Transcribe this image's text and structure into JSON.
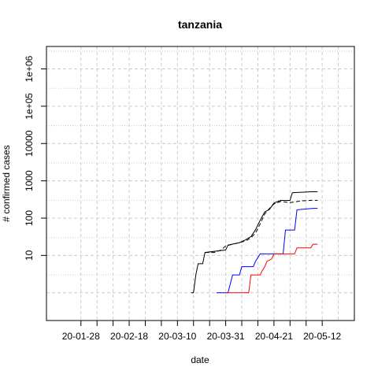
{
  "chart_data": {
    "type": "line",
    "title": "tanzania",
    "xlabel": "date",
    "ylabel": "# confirmed cases",
    "y_scale": "log",
    "ylim": [
      0.18,
      4000000
    ],
    "xlim": [
      "2020-01-13",
      "2020-05-26"
    ],
    "x_ticks": [
      {
        "date": "2020-01-28",
        "label": "20-01-28"
      },
      {
        "date": "2020-02-18",
        "label": "20-02-18"
      },
      {
        "date": "2020-03-10",
        "label": "20-03-10"
      },
      {
        "date": "2020-03-31",
        "label": "20-03-31"
      },
      {
        "date": "2020-04-21",
        "label": "20-04-21"
      },
      {
        "date": "2020-05-12",
        "label": "20-05-12"
      }
    ],
    "y_ticks": [
      {
        "value": 10,
        "label": "10"
      },
      {
        "value": 100,
        "label": "100"
      },
      {
        "value": 1000,
        "label": "1000"
      },
      {
        "value": 10000,
        "label": "10000"
      },
      {
        "value": 100000,
        "label": "1e+05"
      },
      {
        "value": 1000000,
        "label": "1e+06"
      }
    ],
    "grid": true,
    "series": [
      {
        "color": "#000000",
        "dash": "solid",
        "points": [
          [
            "2020-03-16",
            1
          ],
          [
            "2020-03-17",
            1
          ],
          [
            "2020-03-18",
            3
          ],
          [
            "2020-03-19",
            6
          ],
          [
            "2020-03-21",
            6
          ],
          [
            "2020-03-22",
            12
          ],
          [
            "2020-03-31",
            14
          ],
          [
            "2020-04-01",
            19
          ],
          [
            "2020-04-06",
            22
          ],
          [
            "2020-04-08",
            25
          ],
          [
            "2020-04-11",
            32
          ],
          [
            "2020-04-13",
            49
          ],
          [
            "2020-04-15",
            88
          ],
          [
            "2020-04-17",
            147
          ],
          [
            "2020-04-19",
            170
          ],
          [
            "2020-04-21",
            254
          ],
          [
            "2020-04-23",
            284
          ],
          [
            "2020-04-24",
            299
          ],
          [
            "2020-04-28",
            299
          ],
          [
            "2020-04-29",
            480
          ],
          [
            "2020-05-07",
            509
          ],
          [
            "2020-05-10",
            509
          ]
        ]
      },
      {
        "color": "#000000",
        "dash": "dashed",
        "points": [
          [
            "2020-03-22",
            12
          ],
          [
            "2020-03-26",
            12
          ],
          [
            "2020-03-29",
            14
          ],
          [
            "2020-03-31",
            18
          ],
          [
            "2020-04-06",
            22
          ],
          [
            "2020-04-09",
            25
          ],
          [
            "2020-04-11",
            30
          ],
          [
            "2020-04-13",
            40
          ],
          [
            "2020-04-15",
            70
          ],
          [
            "2020-04-17",
            130
          ],
          [
            "2020-04-19",
            180
          ],
          [
            "2020-04-21",
            240
          ],
          [
            "2020-04-24",
            280
          ],
          [
            "2020-04-28",
            260
          ],
          [
            "2020-05-03",
            290
          ],
          [
            "2020-05-07",
            300
          ],
          [
            "2020-05-10",
            300
          ]
        ]
      },
      {
        "color": "#0000ff",
        "dash": "solid",
        "points": [
          [
            "2020-03-27",
            1
          ],
          [
            "2020-04-01",
            1
          ],
          [
            "2020-04-03",
            3
          ],
          [
            "2020-04-06",
            3
          ],
          [
            "2020-04-07",
            5
          ],
          [
            "2020-04-12",
            5
          ],
          [
            "2020-04-13",
            7
          ],
          [
            "2020-04-15",
            11
          ],
          [
            "2020-04-25",
            11
          ],
          [
            "2020-04-26",
            48
          ],
          [
            "2020-04-30",
            48
          ],
          [
            "2020-05-01",
            167
          ],
          [
            "2020-05-08",
            183
          ],
          [
            "2020-05-10",
            183
          ]
        ]
      },
      {
        "color": "#ff0000",
        "dash": "solid",
        "points": [
          [
            "2020-03-31",
            1
          ],
          [
            "2020-04-10",
            1
          ],
          [
            "2020-04-11",
            3
          ],
          [
            "2020-04-15",
            3
          ],
          [
            "2020-04-16",
            4
          ],
          [
            "2020-04-17",
            5
          ],
          [
            "2020-04-18",
            7
          ],
          [
            "2020-04-20",
            8
          ],
          [
            "2020-04-21",
            11
          ],
          [
            "2020-04-30",
            11
          ],
          [
            "2020-05-01",
            16
          ],
          [
            "2020-05-07",
            16
          ],
          [
            "2020-05-08",
            20
          ],
          [
            "2020-05-10",
            20
          ]
        ]
      }
    ]
  }
}
